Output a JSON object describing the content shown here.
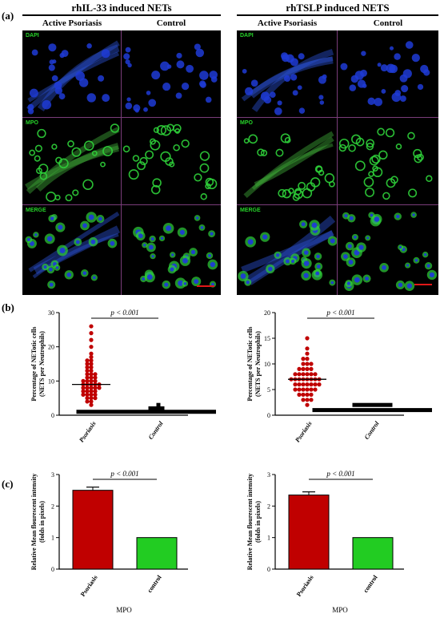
{
  "panel_a": {
    "letter": "(a)",
    "groups": [
      {
        "title": "rhIL-33 induced NETs",
        "columns": [
          "Active Psoriasis",
          "Control"
        ]
      },
      {
        "title": "rhTSLP induced NETS",
        "columns": [
          "Active Psoriasis",
          "Control"
        ]
      }
    ],
    "channels": [
      "DAPI",
      "MPO",
      "MERGE"
    ],
    "colors": {
      "dapi": "#1f3bd6",
      "mpo": "#2fd13a",
      "label": "#27d32a",
      "scalebar": "#e01818"
    }
  },
  "panel_b": {
    "letter": "(b)"
  },
  "panel_c": {
    "letter": "(c)"
  },
  "chart_data": [
    {
      "type": "scatter",
      "panel": "(b) left",
      "title": "",
      "ylabel": "Percentage of NETotic cells (NETS per Neutrophils)",
      "ylim": [
        0,
        30
      ],
      "yticks": [
        0,
        10,
        20,
        30
      ],
      "categories": [
        "Psoriasis",
        "Control"
      ],
      "annotation": "p < 0.001",
      "series": [
        {
          "name": "Psoriasis",
          "values": [
            26,
            24,
            22,
            20,
            18,
            17,
            16,
            16,
            15,
            15,
            14,
            14,
            13,
            13,
            12,
            12,
            12,
            11,
            11,
            11,
            10,
            10,
            10,
            10,
            9,
            9,
            9,
            9,
            9,
            8,
            8,
            8,
            8,
            8,
            7,
            7,
            7,
            7,
            6,
            6,
            6,
            6,
            5,
            5,
            5,
            4,
            4,
            3
          ],
          "median": 9
        },
        {
          "name": "Control",
          "values": [
            3,
            2,
            2,
            2,
            2,
            1,
            1,
            1,
            1,
            1,
            1,
            1,
            1,
            1,
            1,
            1,
            1,
            1,
            1,
            1,
            1,
            1,
            1,
            1,
            1,
            1,
            1,
            1,
            1,
            1,
            1,
            1,
            1,
            1,
            1,
            1,
            1,
            1,
            1,
            1,
            1,
            1,
            1,
            1,
            1
          ],
          "median": 1
        }
      ],
      "colors": {
        "Psoriasis": "#c00000",
        "Control": "#000000"
      }
    },
    {
      "type": "scatter",
      "panel": "(b) right",
      "title": "",
      "ylabel": "Percentage of NETotic cells (NETS per Neutrophils)",
      "ylim": [
        0,
        20
      ],
      "yticks": [
        0,
        5,
        10,
        15,
        20
      ],
      "categories": [
        "Psoriasis",
        "Control"
      ],
      "annotation": "p < 0.001",
      "series": [
        {
          "name": "Psoriasis",
          "values": [
            15,
            13,
            12,
            11,
            11,
            10,
            10,
            10,
            9,
            9,
            9,
            9,
            8,
            8,
            8,
            8,
            8,
            8,
            7,
            7,
            7,
            7,
            7,
            7,
            7,
            7,
            6,
            6,
            6,
            6,
            6,
            6,
            6,
            5,
            5,
            5,
            5,
            5,
            5,
            4,
            4,
            4,
            4,
            3,
            3,
            3,
            2
          ],
          "median": 7
        },
        {
          "name": "Control",
          "values": [
            2,
            2,
            2,
            2,
            2,
            2,
            2,
            2,
            2,
            2,
            1,
            1,
            1,
            1,
            1,
            1,
            1,
            1,
            1,
            1,
            1,
            1,
            1,
            1,
            1,
            1,
            1,
            1,
            1,
            1,
            1,
            1,
            1,
            1,
            1,
            1,
            1,
            1,
            1,
            1
          ],
          "median": 1
        }
      ],
      "colors": {
        "Psoriasis": "#c00000",
        "Control": "#000000"
      }
    },
    {
      "type": "bar",
      "panel": "(c) left",
      "title": "",
      "xlabel": "MPO",
      "ylabel": "Relative Mean flourescent intensity (folds in pixels)",
      "ylim": [
        0,
        3
      ],
      "yticks": [
        0,
        1,
        2,
        3
      ],
      "categories": [
        "Psoriasis",
        "control"
      ],
      "values": [
        2.5,
        1.0
      ],
      "errors": [
        0.1,
        0
      ],
      "annotation": "p < 0.001",
      "colors": [
        "#c00000",
        "#22cc22"
      ]
    },
    {
      "type": "bar",
      "panel": "(c) right",
      "title": "",
      "xlabel": "MPO",
      "ylabel": "Relative Mean flourescent intensity (folds in pixels)",
      "ylim": [
        0,
        3
      ],
      "yticks": [
        0,
        1,
        2,
        3
      ],
      "categories": [
        "Psoriasis",
        "control"
      ],
      "values": [
        2.35,
        1.0
      ],
      "errors": [
        0.1,
        0
      ],
      "annotation": "p < 0.001",
      "colors": [
        "#c00000",
        "#22cc22"
      ]
    }
  ]
}
